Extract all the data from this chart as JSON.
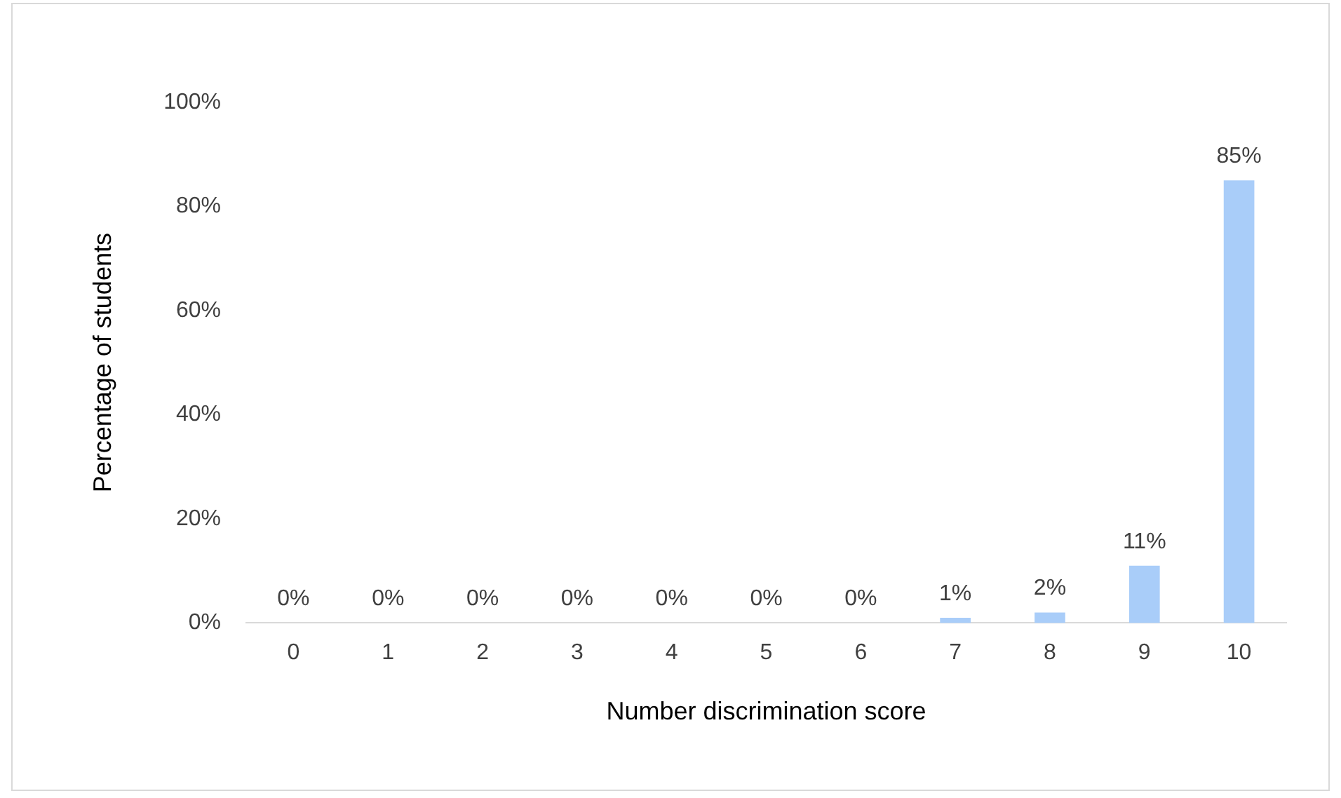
{
  "chart_data": {
    "type": "bar",
    "xlabel": "Number discrimination score",
    "ylabel": "Percentage of students",
    "categories": [
      "0",
      "1",
      "2",
      "3",
      "4",
      "5",
      "6",
      "7",
      "8",
      "9",
      "10"
    ],
    "values": [
      0,
      0,
      0,
      0,
      0,
      0,
      0,
      1,
      2,
      11,
      85
    ],
    "color": "#a9cdf9",
    "value_labels": [
      "0%",
      "0%",
      "0%",
      "0%",
      "0%",
      "0%",
      "0%",
      "1%",
      "2%",
      "11%",
      "85%"
    ],
    "ylim": [
      0,
      100
    ],
    "yticks": [
      {
        "value": 0,
        "label": "0%"
      },
      {
        "value": 20,
        "label": "20%"
      },
      {
        "value": 40,
        "label": "40%"
      },
      {
        "value": 60,
        "label": "60%"
      },
      {
        "value": 80,
        "label": "80%"
      },
      {
        "value": 100,
        "label": "100%"
      }
    ],
    "grid": false,
    "legend": false
  }
}
